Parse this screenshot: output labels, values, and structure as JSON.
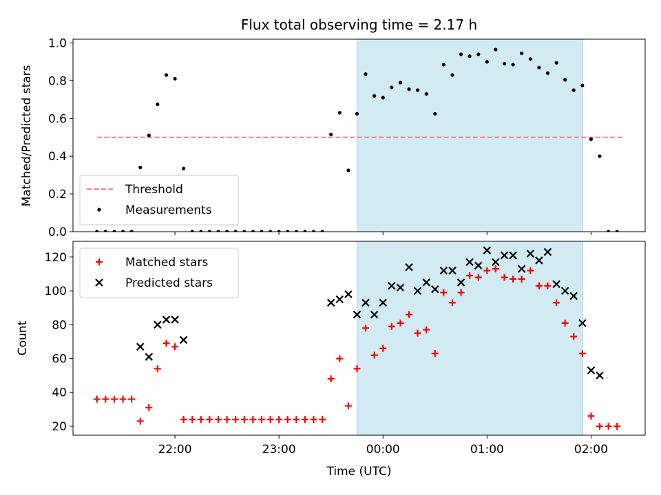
{
  "chart_data": [
    {
      "type": "scatter",
      "title": "Flux total observing time = 2.17 h",
      "ylabel": "Matched/Predicted stars",
      "xlabel": "",
      "xlim": [
        -2.98,
        2.52
      ],
      "ylim": [
        0.0,
        1.02
      ],
      "yticks": [
        "0.0",
        "0.2",
        "0.4",
        "0.6",
        "0.8",
        "1.0"
      ],
      "yticks_values": [
        0,
        0.2,
        0.4,
        0.6,
        0.8,
        1.0
      ],
      "shaded_region": [
        -0.25,
        1.92
      ],
      "shade_color": "#add8e6",
      "threshold": {
        "name": "Threshold",
        "value": 0.5,
        "x_range": [
          -2.75,
          2.3
        ],
        "color": "#f08080"
      },
      "legend": {
        "position": "lower-left",
        "entries": [
          "Threshold",
          "Measurements"
        ]
      },
      "series": [
        {
          "name": "Measurements",
          "color": "#000000",
          "marker": "dot",
          "points": [
            [
              -2.75,
              0
            ],
            [
              -2.667,
              0
            ],
            [
              -2.583,
              0
            ],
            [
              -2.5,
              0
            ],
            [
              -2.417,
              0
            ],
            [
              -2.333,
              0.34
            ],
            [
              -2.25,
              0.51
            ],
            [
              -2.167,
              0.675
            ],
            [
              -2.083,
              0.83
            ],
            [
              -2.0,
              0.81
            ],
            [
              -1.917,
              0.335
            ],
            [
              -1.833,
              0
            ],
            [
              -1.75,
              0
            ],
            [
              -1.667,
              0
            ],
            [
              -1.583,
              0
            ],
            [
              -1.5,
              0
            ],
            [
              -1.417,
              0
            ],
            [
              -1.333,
              0
            ],
            [
              -1.25,
              0
            ],
            [
              -1.167,
              0
            ],
            [
              -1.083,
              0
            ],
            [
              -1.0,
              0
            ],
            [
              -0.917,
              0
            ],
            [
              -0.833,
              0
            ],
            [
              -0.75,
              0
            ],
            [
              -0.667,
              0
            ],
            [
              -0.583,
              0
            ],
            [
              -0.5,
              0.515
            ],
            [
              -0.417,
              0.63
            ],
            [
              -0.333,
              0.325
            ],
            [
              -0.25,
              0.625
            ],
            [
              -0.167,
              0.835
            ],
            [
              -0.083,
              0.72
            ],
            [
              0.0,
              0.71
            ],
            [
              0.083,
              0.765
            ],
            [
              0.167,
              0.79
            ],
            [
              0.25,
              0.755
            ],
            [
              0.333,
              0.75
            ],
            [
              0.417,
              0.73
            ],
            [
              0.5,
              0.625
            ],
            [
              0.583,
              0.885
            ],
            [
              0.667,
              0.83
            ],
            [
              0.75,
              0.94
            ],
            [
              0.833,
              0.93
            ],
            [
              0.917,
              0.94
            ],
            [
              1.0,
              0.9
            ],
            [
              1.083,
              0.965
            ],
            [
              1.167,
              0.89
            ],
            [
              1.25,
              0.885
            ],
            [
              1.333,
              0.945
            ],
            [
              1.417,
              0.915
            ],
            [
              1.5,
              0.87
            ],
            [
              1.583,
              0.84
            ],
            [
              1.667,
              0.895
            ],
            [
              1.75,
              0.805
            ],
            [
              1.833,
              0.75
            ],
            [
              1.917,
              0.775
            ],
            [
              2.0,
              0.49
            ],
            [
              2.083,
              0.4
            ],
            [
              2.167,
              0
            ],
            [
              2.25,
              0
            ]
          ]
        }
      ]
    },
    {
      "type": "scatter",
      "title": "",
      "ylabel": "Count",
      "xlabel": "Time (UTC)",
      "xlim": [
        -2.98,
        2.52
      ],
      "ylim": [
        14.7,
        129.3
      ],
      "xticks": [
        "22:00",
        "23:00",
        "00:00",
        "01:00",
        "02:00"
      ],
      "xticks_values": [
        -2,
        -1,
        0,
        1,
        2
      ],
      "yticks": [
        "20",
        "40",
        "60",
        "80",
        "100",
        "120"
      ],
      "yticks_values": [
        20,
        40,
        60,
        80,
        100,
        120
      ],
      "shaded_region": [
        -0.25,
        1.92
      ],
      "shade_color": "#add8e6",
      "legend": {
        "position": "upper-left",
        "entries": [
          "Matched stars",
          "Predicted stars"
        ]
      },
      "series": [
        {
          "name": "Matched stars",
          "color": "#ff0000",
          "marker": "plus",
          "points": [
            [
              -2.75,
              36
            ],
            [
              -2.667,
              36
            ],
            [
              -2.583,
              36
            ],
            [
              -2.5,
              36
            ],
            [
              -2.417,
              36
            ],
            [
              -2.333,
              23
            ],
            [
              -2.25,
              31
            ],
            [
              -2.167,
              54
            ],
            [
              -2.083,
              69
            ],
            [
              -2.0,
              67
            ],
            [
              -1.917,
              24
            ],
            [
              -1.833,
              24
            ],
            [
              -1.75,
              24
            ],
            [
              -1.667,
              24
            ],
            [
              -1.583,
              24
            ],
            [
              -1.5,
              24
            ],
            [
              -1.417,
              24
            ],
            [
              -1.333,
              24
            ],
            [
              -1.25,
              24
            ],
            [
              -1.167,
              24
            ],
            [
              -1.083,
              24
            ],
            [
              -1.0,
              24
            ],
            [
              -0.917,
              24
            ],
            [
              -0.833,
              24
            ],
            [
              -0.75,
              24
            ],
            [
              -0.667,
              24
            ],
            [
              -0.583,
              24
            ],
            [
              -0.5,
              48
            ],
            [
              -0.417,
              60
            ],
            [
              -0.333,
              32
            ],
            [
              -0.25,
              54
            ],
            [
              -0.167,
              78
            ],
            [
              -0.083,
              62
            ],
            [
              0.0,
              66
            ],
            [
              0.083,
              79
            ],
            [
              0.167,
              81
            ],
            [
              0.25,
              86
            ],
            [
              0.333,
              75
            ],
            [
              0.417,
              77
            ],
            [
              0.5,
              63
            ],
            [
              0.583,
              99
            ],
            [
              0.667,
              93
            ],
            [
              0.75,
              99
            ],
            [
              0.833,
              109
            ],
            [
              0.917,
              108
            ],
            [
              1.0,
              112
            ],
            [
              1.083,
              113
            ],
            [
              1.167,
              108
            ],
            [
              1.25,
              107
            ],
            [
              1.333,
              107
            ],
            [
              1.417,
              112
            ],
            [
              1.5,
              103
            ],
            [
              1.583,
              103
            ],
            [
              1.667,
              93
            ],
            [
              1.75,
              81
            ],
            [
              1.833,
              73
            ],
            [
              1.917,
              63
            ],
            [
              2.0,
              26
            ],
            [
              2.083,
              20
            ],
            [
              2.167,
              20
            ],
            [
              2.25,
              20
            ]
          ]
        },
        {
          "name": "Predicted stars",
          "color": "#000000",
          "marker": "x",
          "points": [
            [
              -2.333,
              67
            ],
            [
              -2.25,
              61
            ],
            [
              -2.167,
              80
            ],
            [
              -2.083,
              83
            ],
            [
              -2.0,
              83
            ],
            [
              -1.917,
              71
            ],
            [
              -0.5,
              93
            ],
            [
              -0.417,
              95
            ],
            [
              -0.333,
              98
            ],
            [
              -0.25,
              86
            ],
            [
              -0.167,
              93
            ],
            [
              -0.083,
              86
            ],
            [
              0.0,
              93
            ],
            [
              0.083,
              103
            ],
            [
              0.167,
              102
            ],
            [
              0.25,
              114
            ],
            [
              0.333,
              100
            ],
            [
              0.417,
              105
            ],
            [
              0.5,
              101
            ],
            [
              0.583,
              112
            ],
            [
              0.667,
              112
            ],
            [
              0.75,
              105
            ],
            [
              0.833,
              117
            ],
            [
              0.917,
              115
            ],
            [
              1.0,
              124
            ],
            [
              1.083,
              117
            ],
            [
              1.167,
              121
            ],
            [
              1.25,
              121
            ],
            [
              1.333,
              113
            ],
            [
              1.417,
              122
            ],
            [
              1.5,
              118
            ],
            [
              1.583,
              123
            ],
            [
              1.667,
              104
            ],
            [
              1.75,
              100
            ],
            [
              1.833,
              97
            ],
            [
              1.917,
              81
            ],
            [
              2.0,
              53
            ],
            [
              2.083,
              50
            ]
          ]
        }
      ]
    }
  ]
}
